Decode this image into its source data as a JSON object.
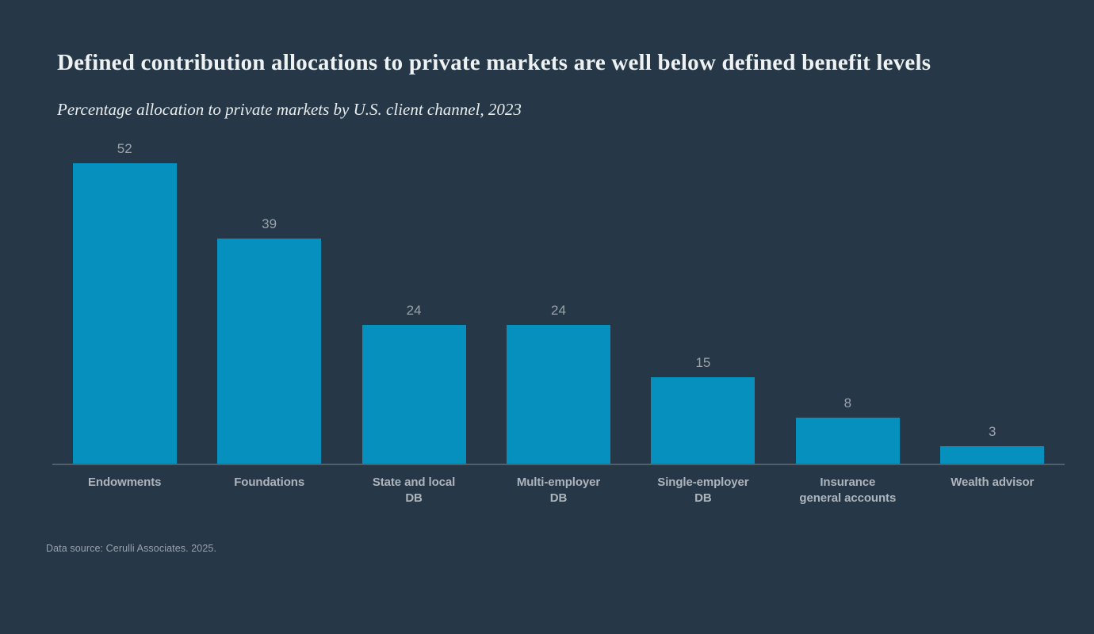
{
  "title": "Defined contribution allocations to private markets are well below defined benefit levels",
  "subtitle": "Percentage allocation to private markets by U.S. client channel, 2023",
  "footnote": "Data source: Cerulli Associates. 2025.",
  "colors": {
    "background": "#263847",
    "bar": "#0590be",
    "axis_line": "#515f6b",
    "title_text": "#eff2f3",
    "value_label_text": "#9ba2a9",
    "category_label_text": "#adb4bb",
    "footnote_text": "#99a1a8"
  },
  "chart_data": {
    "type": "bar",
    "title": "Defined contribution allocations to private markets are well below defined benefit levels",
    "subtitle": "Percentage allocation to private markets by U.S. client channel, 2023",
    "categories": [
      "Endowments",
      "Foundations",
      "State and local\nDB",
      "Multi-employer\nDB",
      "Single-employer\nDB",
      "Insurance\ngeneral accounts",
      "Wealth advisor"
    ],
    "values": [
      52,
      39,
      24,
      24,
      15,
      8,
      3
    ],
    "xlabel": "",
    "ylabel": "",
    "ylim": [
      0,
      52
    ],
    "grid": false,
    "legend": "none",
    "y_axis_visible": false,
    "value_labels": true
  }
}
